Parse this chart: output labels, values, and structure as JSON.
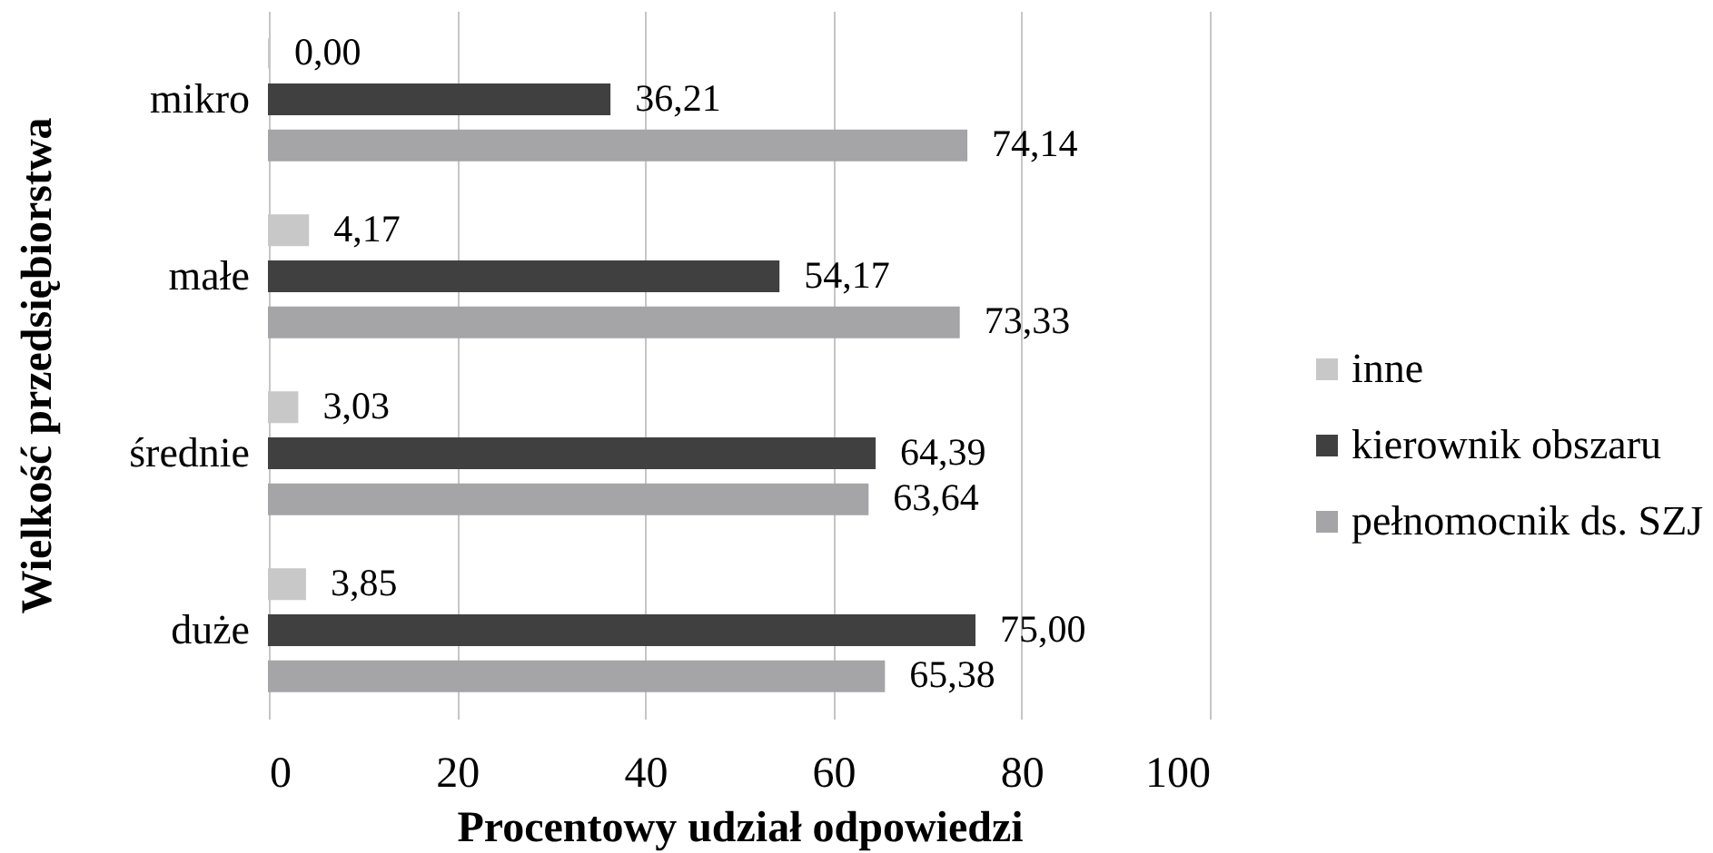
{
  "chart_data": {
    "type": "bar",
    "orientation": "horizontal",
    "xlabel": "Procentowy udział odpowiedzi",
    "ylabel": "Wielkość przedsiębiorstwa",
    "categories": [
      "mikro",
      "małe",
      "średnie",
      "duże"
    ],
    "series": [
      {
        "name": "inne",
        "color": "#c8c8c8",
        "values": [
          0.0,
          4.17,
          3.03,
          3.85
        ],
        "value_labels": [
          "0,00",
          "4,17",
          "3,03",
          "3,85"
        ]
      },
      {
        "name": "kierownik obszaru",
        "color": "#404040",
        "values": [
          36.21,
          54.17,
          64.39,
          75.0
        ],
        "value_labels": [
          "36,21",
          "54,17",
          "64,39",
          "75,00"
        ]
      },
      {
        "name": "pełnomocnik ds. SZJ",
        "color": "#a5a5a8",
        "values": [
          74.14,
          73.33,
          63.64,
          65.38
        ],
        "value_labels": [
          "74,14",
          "73,33",
          "63,64",
          "65,38"
        ]
      }
    ],
    "xlim": [
      0,
      100
    ],
    "xticks": [
      0,
      20,
      40,
      60,
      80,
      100
    ],
    "grid": "x",
    "legend": "right"
  }
}
